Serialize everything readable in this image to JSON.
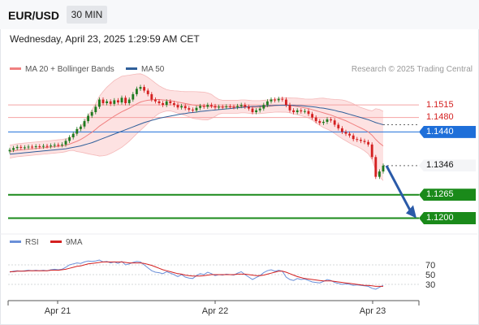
{
  "header": {
    "symbol": "EUR/USD",
    "timeframe": "30 MIN"
  },
  "timestamp": "Wednesday, April 23, 2025 1:29:59 AM CET",
  "legend": {
    "bollinger_label": "MA 20 + Bollinger Bands",
    "ma50_label": "MA 50",
    "credit": "Research © 2025 Trading Central"
  },
  "rsi_legend": {
    "rsi_label": "RSI",
    "ma_label": "9MA"
  },
  "colors": {
    "bollinger": "#f08080",
    "band_fill": "#fde2e2",
    "ma50": "#2f5f9a",
    "resistance": "#f4a3a3",
    "pivot": "#1e6fd9",
    "support": "#1a8a1a",
    "bull": "#1f7a1f",
    "bear": "#d42020",
    "rsi": "#6a8fd8",
    "rsi_ma": "#d42020",
    "arrow": "#2a5aa8"
  },
  "chart_data": [
    {
      "type": "candlestick",
      "title": "EUR/USD",
      "x_ticks": [
        "Apr 21",
        "Apr 22",
        "Apr 23"
      ],
      "ylim": [
        1.1165,
        1.159
      ],
      "levels": [
        {
          "value": 1.1515,
          "label": "1.1515",
          "kind": "resistance"
        },
        {
          "value": 1.148,
          "label": "1.1480",
          "kind": "resistance"
        },
        {
          "value": 1.144,
          "label": "1.1440",
          "kind": "pivot"
        },
        {
          "value": 1.1346,
          "label": "1.1346",
          "kind": "last"
        },
        {
          "value": 1.1265,
          "label": "1.1265",
          "kind": "support"
        },
        {
          "value": 1.12,
          "label": "1.1200",
          "kind": "support"
        }
      ],
      "closes": [
        1.139,
        1.1395,
        1.1398,
        1.1396,
        1.1397,
        1.1399,
        1.1398,
        1.14,
        1.1399,
        1.1401,
        1.14,
        1.1402,
        1.1404,
        1.1403,
        1.1405,
        1.1415,
        1.1425,
        1.1435,
        1.1448,
        1.1455,
        1.147,
        1.1485,
        1.1495,
        1.151,
        1.153,
        1.152,
        1.1525,
        1.1518,
        1.1528,
        1.1522,
        1.1535,
        1.152,
        1.153,
        1.1545,
        1.156,
        1.1565,
        1.1555,
        1.1545,
        1.153,
        1.1525,
        1.152,
        1.1515,
        1.1525,
        1.152,
        1.1515,
        1.1508,
        1.1512,
        1.1506,
        1.1502,
        1.15,
        1.1507,
        1.1512,
        1.151,
        1.1515,
        1.1512,
        1.1508,
        1.151,
        1.1509,
        1.1511,
        1.151,
        1.1509,
        1.1512,
        1.1515,
        1.151,
        1.1505,
        1.1495,
        1.15,
        1.1505,
        1.1515,
        1.1525,
        1.153,
        1.1528,
        1.1532,
        1.153,
        1.1515,
        1.15,
        1.1495,
        1.15,
        1.1497,
        1.1498,
        1.149,
        1.148,
        1.147,
        1.1465,
        1.1468,
        1.1475,
        1.1472,
        1.146,
        1.145,
        1.144,
        1.1435,
        1.143,
        1.142,
        1.1418,
        1.1415,
        1.1412,
        1.1405,
        1.137,
        1.1315,
        1.133,
        1.1346
      ],
      "ma20": [
        1.1385,
        1.1387,
        1.1389,
        1.139,
        1.1391,
        1.1392,
        1.1393,
        1.1394,
        1.1395,
        1.1396,
        1.1397,
        1.1398,
        1.1399,
        1.14,
        1.1401,
        1.1403,
        1.1406,
        1.141,
        1.1414,
        1.1419,
        1.1425,
        1.1432,
        1.1439,
        1.1447,
        1.1456,
        1.1463,
        1.147,
        1.1477,
        1.1484,
        1.149,
        1.1496,
        1.1501,
        1.1506,
        1.1512,
        1.1518,
        1.1523,
        1.1526,
        1.1528,
        1.1529,
        1.153,
        1.153,
        1.1529,
        1.1528,
        1.1527,
        1.1525,
        1.1523,
        1.1521,
        1.1519,
        1.1517,
        1.1515,
        1.1514,
        1.1513,
        1.1512,
        1.1511,
        1.1511,
        1.151,
        1.151,
        1.151,
        1.151,
        1.151,
        1.151,
        1.151,
        1.1511,
        1.1511,
        1.151,
        1.1509,
        1.1509,
        1.1509,
        1.151,
        1.1511,
        1.1512,
        1.1513,
        1.1514,
        1.1515,
        1.1515,
        1.1514,
        1.1512,
        1.1511,
        1.1509,
        1.1507,
        1.1505,
        1.1502,
        1.1499,
        1.1496,
        1.1493,
        1.149,
        1.1487,
        1.1483,
        1.1479,
        1.1475,
        1.1471,
        1.1466,
        1.1461,
        1.1456,
        1.1451,
        1.1446,
        1.144,
        1.1431,
        1.1419,
        1.1409,
        1.1401
      ],
      "ma50": [
        1.1378,
        1.1379,
        1.138,
        1.1381,
        1.1382,
        1.1383,
        1.1384,
        1.1385,
        1.1386,
        1.1387,
        1.1388,
        1.1389,
        1.139,
        1.1391,
        1.1392,
        1.1393,
        1.1395,
        1.1397,
        1.1399,
        1.1401,
        1.1404,
        1.1407,
        1.141,
        1.1414,
        1.1418,
        1.1422,
        1.1426,
        1.143,
        1.1434,
        1.1438,
        1.1442,
        1.1446,
        1.145,
        1.1454,
        1.1458,
        1.1462,
        1.1466,
        1.1469,
        1.1472,
        1.1475,
        1.1478,
        1.148,
        1.1482,
        1.1484,
        1.1486,
        1.1488,
        1.149,
        1.1491,
        1.1493,
        1.1494,
        1.1495,
        1.1497,
        1.1498,
        1.1499,
        1.15,
        1.1501,
        1.1502,
        1.1503,
        1.1504,
        1.1505,
        1.1506,
        1.1507,
        1.1508,
        1.1509,
        1.151,
        1.1511,
        1.1511,
        1.1512,
        1.1512,
        1.1513,
        1.1513,
        1.1514,
        1.1514,
        1.1514,
        1.1514,
        1.1514,
        1.1514,
        1.1513,
        1.1513,
        1.1512,
        1.1511,
        1.151,
        1.1509,
        1.1507,
        1.1506,
        1.1504,
        1.1502,
        1.15,
        1.1497,
        1.1495,
        1.1492,
        1.1489,
        1.1486,
        1.1483,
        1.148,
        1.1477,
        1.1474,
        1.147,
        1.1466,
        1.1463,
        1.146
      ]
    },
    {
      "type": "line",
      "title": "RSI",
      "ylim": [
        0,
        100
      ],
      "y_ticks": [
        70,
        50,
        30
      ],
      "rsi": [
        55,
        57,
        58,
        57,
        58,
        59,
        58,
        59,
        58,
        59,
        58,
        60,
        61,
        60,
        61,
        65,
        70,
        72,
        74,
        73,
        76,
        78,
        77,
        78,
        80,
        76,
        77,
        74,
        76,
        73,
        77,
        70,
        72,
        75,
        77,
        76,
        70,
        64,
        58,
        55,
        54,
        52,
        56,
        53,
        50,
        46,
        50,
        45,
        43,
        42,
        48,
        52,
        50,
        55,
        52,
        48,
        50,
        49,
        51,
        50,
        49,
        53,
        56,
        50,
        45,
        40,
        44,
        48,
        54,
        58,
        60,
        57,
        59,
        57,
        45,
        40,
        38,
        42,
        40,
        41,
        38,
        35,
        34,
        33,
        36,
        40,
        38,
        34,
        32,
        30,
        31,
        30,
        28,
        29,
        28,
        27,
        26,
        22,
        20,
        24,
        28
      ],
      "rsi_ma": [
        56,
        56,
        57,
        57,
        57,
        58,
        58,
        58,
        58,
        58,
        58,
        59,
        59,
        59,
        60,
        61,
        63,
        65,
        67,
        68,
        70,
        72,
        73,
        74,
        75,
        76,
        76,
        76,
        76,
        76,
        76,
        75,
        74,
        74,
        74,
        74,
        73,
        71,
        69,
        66,
        63,
        60,
        58,
        56,
        54,
        52,
        51,
        49,
        48,
        47,
        47,
        47,
        48,
        49,
        50,
        50,
        50,
        50,
        50,
        50,
        50,
        51,
        51,
        51,
        50,
        49,
        48,
        48,
        49,
        51,
        53,
        55,
        57,
        57,
        55,
        52,
        49,
        46,
        44,
        42,
        41,
        40,
        39,
        38,
        37,
        37,
        37,
        36,
        35,
        34,
        33,
        32,
        31,
        30,
        29,
        28,
        28,
        27,
        26,
        26,
        26
      ]
    }
  ],
  "y_tick_labels": [
    "70",
    "50",
    "30"
  ]
}
